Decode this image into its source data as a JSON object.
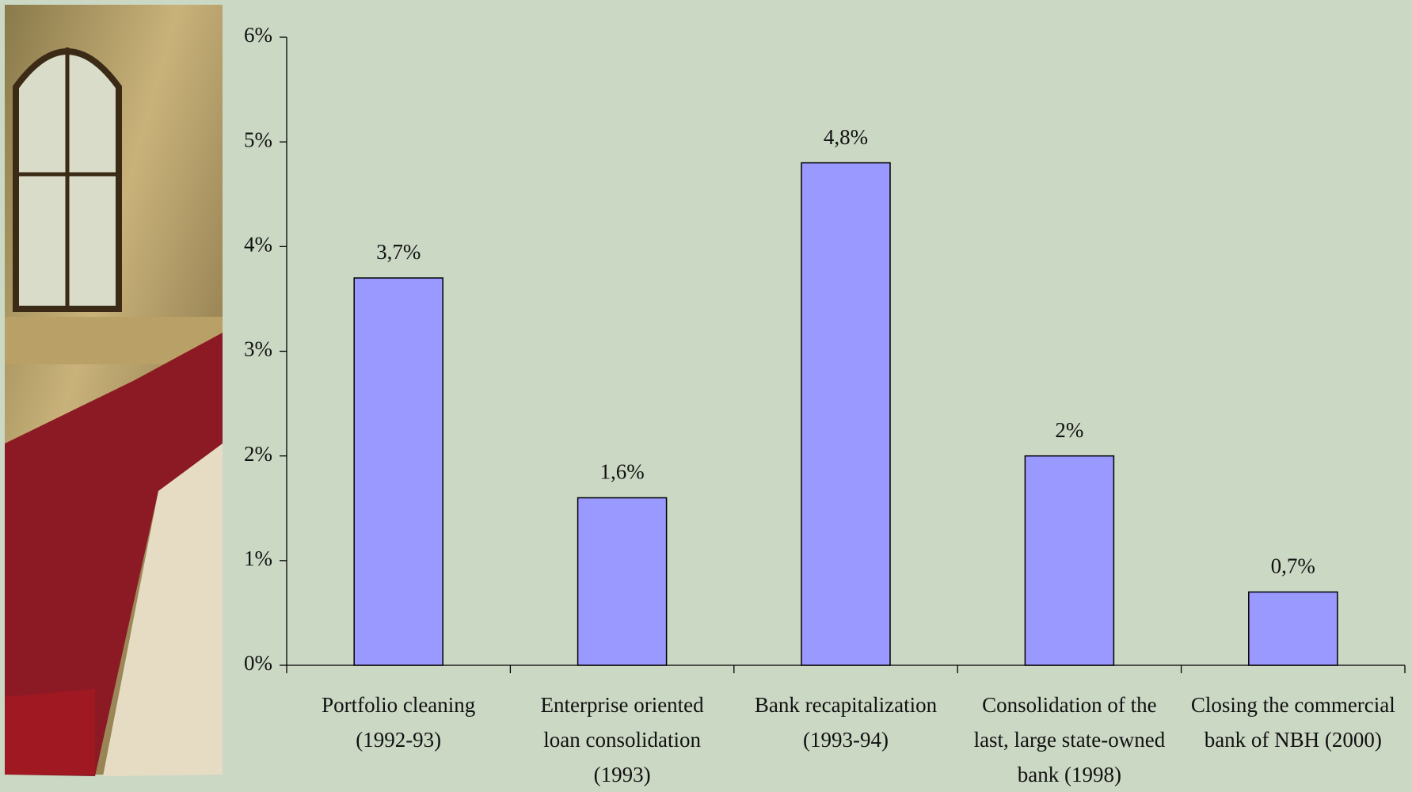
{
  "chart_data": {
    "type": "bar",
    "categories": [
      [
        "Portfolio cleaning",
        "(1992-93)"
      ],
      [
        "Enterprise oriented",
        "loan consolidation",
        "(1993)"
      ],
      [
        "Bank recapitalization",
        "(1993-94)"
      ],
      [
        "Consolidation of the",
        "last, large state-owned",
        "bank (1998)"
      ],
      [
        "Closing the commercial",
        "bank of NBH (2000)"
      ]
    ],
    "values": [
      3.7,
      1.6,
      4.8,
      2,
      0.7
    ],
    "value_labels": [
      "3,7%",
      "1,6%",
      "4,8%",
      "2%",
      "0,7%"
    ],
    "color": "#9999ff",
    "ylim": [
      0,
      6
    ],
    "yticks": [
      {
        "value": 0,
        "label": "0%"
      },
      {
        "value": 1,
        "label": "1%"
      },
      {
        "value": 2,
        "label": "2%"
      },
      {
        "value": 3,
        "label": "3%"
      },
      {
        "value": 4,
        "label": "4%"
      },
      {
        "value": 5,
        "label": "5%"
      },
      {
        "value": 6,
        "label": "6%"
      }
    ],
    "grid": false
  }
}
